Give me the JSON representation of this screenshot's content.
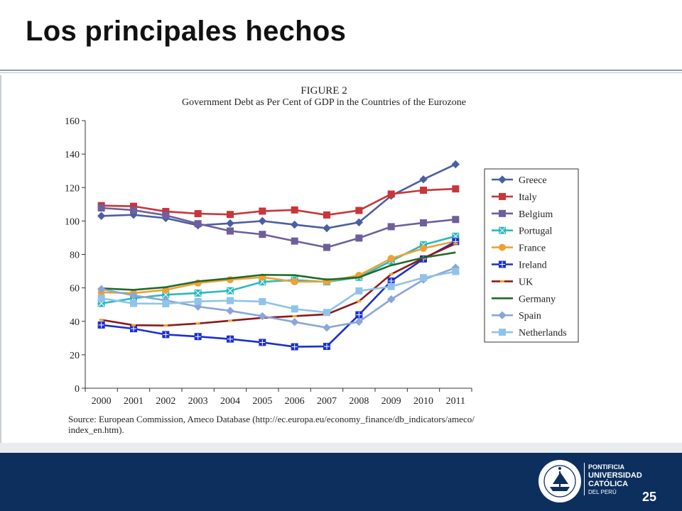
{
  "slide": {
    "title": "Los principales hechos",
    "page_number": "25"
  },
  "logo": {
    "line1": "PONTIFICIA",
    "line2": "UNIVERSIDAD",
    "line3": "CATÓLICA",
    "line4": "DEL PERÚ",
    "seal_text": "ET LUX IN TENEBRIS LUCET"
  },
  "chart_data": {
    "type": "line",
    "figure_label": "FIGURE 2",
    "title": "Government Debt as Per Cent of GDP in the Countries of the Eurozone",
    "xlabel": "",
    "ylabel": "",
    "ylim": [
      0,
      160
    ],
    "yticks": [
      "0",
      "20",
      "40",
      "60",
      "80",
      "100",
      "120",
      "140",
      "160"
    ],
    "x": [
      "2000",
      "2001",
      "2002",
      "2003",
      "2004",
      "2005",
      "2006",
      "2007",
      "2008",
      "2009",
      "2010",
      "2011"
    ],
    "grid": false,
    "legend_position": "right",
    "source": "Source: European Commission, Ameco Database (http://ec.europa.eu/economy_finance/db_indicators/ameco/ index_en.htm).",
    "series": [
      {
        "name": "Greece",
        "color": "#4a5fa0",
        "marker": "diamond",
        "values": [
          103,
          103.7,
          101.7,
          97.4,
          98.6,
          100,
          97.8,
          95.7,
          99.2,
          115.1,
          124.9,
          133.9
        ]
      },
      {
        "name": "Italy",
        "color": "#c8353a",
        "marker": "square",
        "values": [
          109.2,
          108.8,
          105.7,
          104.4,
          103.9,
          105.9,
          106.6,
          103.6,
          106.3,
          116.1,
          118.4,
          119.2
        ]
      },
      {
        "name": "Belgium",
        "color": "#6e5f9c",
        "marker": "square",
        "values": [
          107.8,
          106.5,
          103.4,
          98.4,
          94,
          92,
          88,
          84.2,
          89.8,
          96.6,
          98.9,
          100.9
        ]
      },
      {
        "name": "Portugal",
        "color": "#2bb8c0",
        "marker": "square-x",
        "values": [
          50.7,
          53.8,
          55.9,
          56.9,
          58.3,
          63.6,
          64.7,
          63.6,
          66.3,
          76.1,
          85.8,
          90.9
        ]
      },
      {
        "name": "France",
        "color": "#f0a030",
        "marker": "circle",
        "values": [
          57.3,
          56.9,
          58.8,
          62.9,
          64.9,
          66.4,
          63.7,
          63.8,
          67.5,
          77.6,
          83.6,
          87.9
        ]
      },
      {
        "name": "Ireland",
        "color": "#1a2fd0",
        "marker": "square-cross",
        "values": [
          37.8,
          35.6,
          32.1,
          30.9,
          29.4,
          27.4,
          24.8,
          25,
          43.9,
          64.1,
          77.3,
          87.7
        ]
      },
      {
        "name": "UK",
        "color": "#8b1a1a",
        "marker": "dash",
        "values": [
          40.9,
          37.7,
          37.5,
          38.7,
          40.4,
          42.1,
          43.1,
          44.2,
          52,
          68.2,
          77.8,
          86.5
        ]
      },
      {
        "name": "Germany",
        "color": "#1f6b2a",
        "marker": "none",
        "values": [
          59.7,
          58.8,
          60.4,
          63.9,
          65.7,
          67.8,
          67.6,
          64.9,
          66.3,
          73.5,
          78.1,
          81.2
        ]
      },
      {
        "name": "Spain",
        "color": "#8aa6d8",
        "marker": "diamond",
        "values": [
          59.3,
          55.5,
          52.5,
          48.8,
          46.3,
          43.1,
          39.6,
          36.2,
          39.7,
          53.2,
          64.9,
          72.1
        ]
      },
      {
        "name": "Netherlands",
        "color": "#8fc3ea",
        "marker": "square",
        "values": [
          53.8,
          50.7,
          50.5,
          51.9,
          52.4,
          51.8,
          47.4,
          45.3,
          58.2,
          60.8,
          66.1,
          69.8
        ]
      }
    ]
  }
}
